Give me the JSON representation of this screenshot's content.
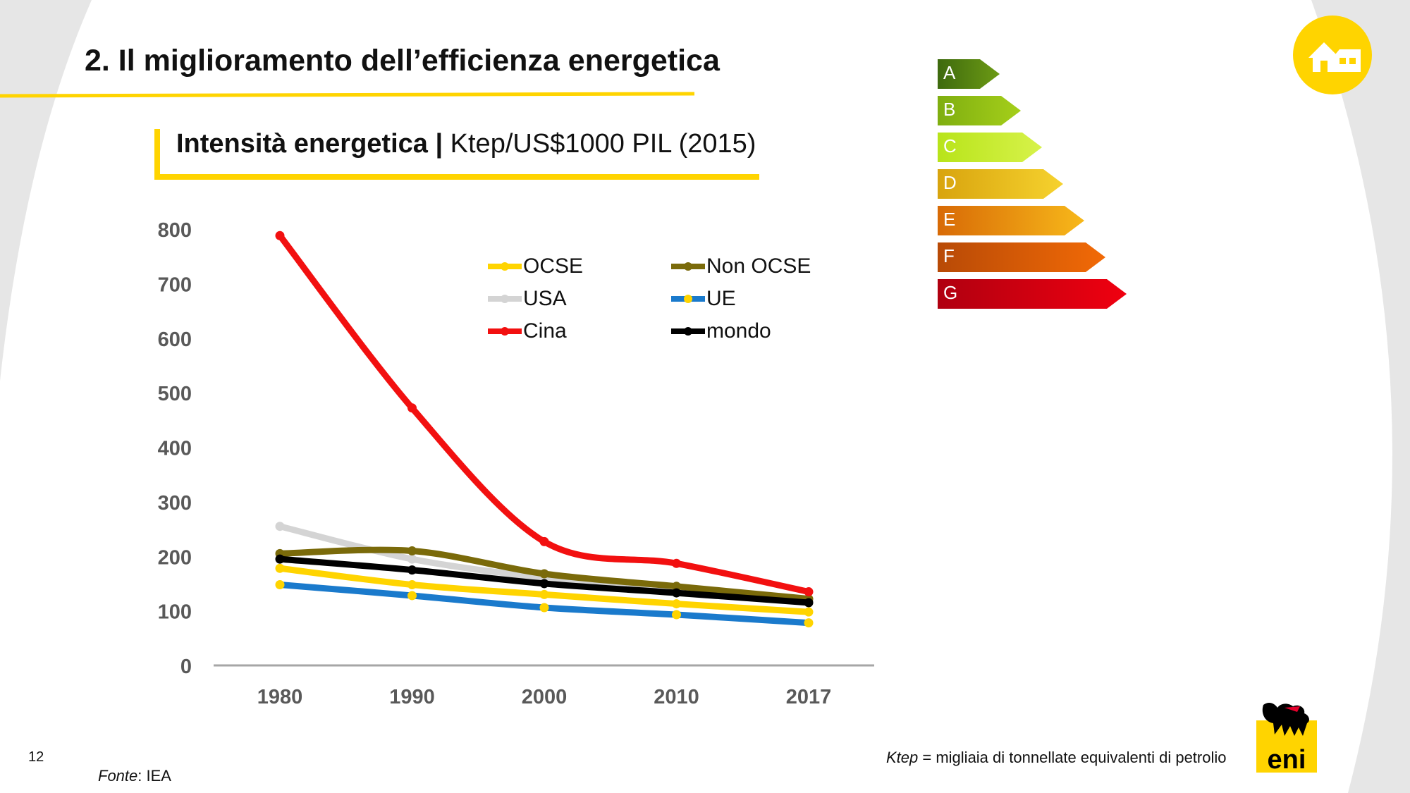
{
  "slide": {
    "title": "2. Il miglioramento dell’efficienza energetica",
    "chart_heading_bold": "Intensità energetica",
    "chart_heading_sep": " | ",
    "chart_heading_rest": "Ktep/US$1000 PIL (2015)",
    "page_number": "12",
    "source_label": "Fonte",
    "source_value": ": IEA",
    "footnote_term": "Ktep",
    "footnote_text": " = migliaia di tonnellate equivalenti di petrolio"
  },
  "colors": {
    "accent": "#FFD400",
    "grey_arc": "#E6E6E6"
  },
  "energy_classes": [
    {
      "label": "A",
      "from": "#3E6A0E",
      "to": "#6C9A14"
    },
    {
      "label": "B",
      "from": "#7FAE10",
      "to": "#A5CF1A"
    },
    {
      "label": "C",
      "from": "#B8E41A",
      "to": "#D7F24A"
    },
    {
      "label": "D",
      "from": "#D8A40E",
      "to": "#F6D22E"
    },
    {
      "label": "E",
      "from": "#D86A06",
      "to": "#F7B81A"
    },
    {
      "label": "F",
      "from": "#B84A06",
      "to": "#F26A06"
    },
    {
      "label": "G",
      "from": "#B00010",
      "to": "#F00010"
    }
  ],
  "logos": {
    "top_right": "house-icon",
    "bottom_right": "eni-six-legged-dog-logo",
    "bottom_right_text": "eni"
  },
  "chart_data": {
    "type": "line",
    "title": "",
    "xlabel": "",
    "ylabel": "",
    "x": [
      "1980",
      "1990",
      "2000",
      "2010",
      "2017"
    ],
    "ylim": [
      0,
      800
    ],
    "yticks": [
      0,
      100,
      200,
      300,
      400,
      500,
      600,
      700,
      800
    ],
    "grid": false,
    "legend": "inside-top, two columns",
    "series": [
      {
        "name": "OCSE",
        "color": "#FFD400",
        "values": [
          178,
          148,
          130,
          113,
          98
        ]
      },
      {
        "name": "Non OCSE",
        "color": "#7A6A0A",
        "values": [
          205,
          210,
          168,
          145,
          122
        ]
      },
      {
        "name": "USA",
        "color": "#D4D4D4",
        "values": [
          255,
          195,
          160,
          133,
          117
        ]
      },
      {
        "name": "UE",
        "color": "#1A7ACC",
        "values": [
          148,
          128,
          106,
          93,
          78
        ]
      },
      {
        "name": "Cina",
        "color": "#F21010",
        "values": [
          788,
          472,
          227,
          187,
          135
        ]
      },
      {
        "name": "mondo",
        "color": "#000000",
        "values": [
          195,
          175,
          150,
          133,
          115
        ]
      }
    ]
  }
}
